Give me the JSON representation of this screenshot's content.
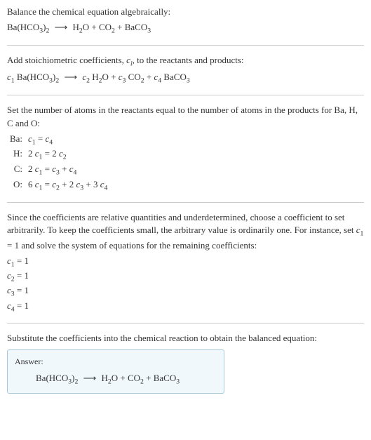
{
  "colors": {
    "text": "#333333",
    "divider": "#cccccc",
    "answer_bg": "#f0f8fc",
    "answer_border": "#a8c8d8",
    "body_bg": "#ffffff"
  },
  "typography": {
    "font_family": "Georgia, Times New Roman, serif",
    "base_fontsize": 13,
    "sub_fontsize_em": 0.75
  },
  "arrow": "⟶",
  "block1": {
    "title": "Balance the chemical equation algebraically:",
    "lhs": "Ba(HCO",
    "lhs_sub1": "3",
    "lhs_tail": ")",
    "lhs_sub2": "2",
    "rhs1": "H",
    "rhs1_sub": "2",
    "rhs1_tail": "O + CO",
    "rhs2_sub": "2",
    "rhs2_tail": " + BaCO",
    "rhs3_sub": "3"
  },
  "block2": {
    "title_pre": "Add stoichiometric coefficients, ",
    "title_ci": "c",
    "title_ci_sub": "i",
    "title_post": ", to the reactants and products:",
    "c1": "c",
    "c1_sub": "1",
    "c1_sp": " Ba(HCO",
    "c1_sub2": "3",
    "c1_tail": ")",
    "c1_sub3": "2",
    "c2": "c",
    "c2_sub": "2",
    "c2_sp": " H",
    "c2_sub2": "2",
    "c2_tail": "O + ",
    "c3": "c",
    "c3_sub": "3",
    "c3_sp": " CO",
    "c3_sub2": "2",
    "c3_tail": " + ",
    "c4": "c",
    "c4_sub": "4",
    "c4_sp": " BaCO",
    "c4_sub2": "3"
  },
  "block3": {
    "title": "Set the number of atoms in the reactants equal to the number of atoms in the products for Ba, H, C and O:",
    "rows": [
      {
        "label": "Ba:",
        "pre1": "c",
        "sub1": "1",
        "mid": " = ",
        "pre2": "c",
        "sub2": "4",
        "tail": ""
      },
      {
        "label": "H:",
        "pre1": "2 c",
        "sub1": "1",
        "mid": " = 2 ",
        "pre2": "c",
        "sub2": "2",
        "tail": ""
      },
      {
        "label": "C:",
        "pre1": "2 c",
        "sub1": "1",
        "mid": " = ",
        "pre2": "c",
        "sub2": "3",
        "tail_pre": " + ",
        "pre3": "c",
        "sub3": "4"
      },
      {
        "label": "O:",
        "pre1": "6 c",
        "sub1": "1",
        "mid": " = ",
        "pre2": "c",
        "sub2": "2",
        "tail_pre": " + 2 ",
        "pre3": "c",
        "sub3": "3",
        "tail_pre2": " + 3 ",
        "pre4": "c",
        "sub4": "4"
      }
    ]
  },
  "block4": {
    "title_pre": "Since the coefficients are relative quantities and underdetermined, choose a coefficient to set arbitrarily. To keep the coefficients small, the arbitrary value is ordinarily one. For instance, set ",
    "title_c": "c",
    "title_c_sub": "1",
    "title_post": " = 1 and solve the system of equations for the remaining coefficients:",
    "coefs": [
      {
        "c": "c",
        "sub": "1",
        "val": " = 1"
      },
      {
        "c": "c",
        "sub": "2",
        "val": " = 1"
      },
      {
        "c": "c",
        "sub": "3",
        "val": " = 1"
      },
      {
        "c": "c",
        "sub": "4",
        "val": " = 1"
      }
    ]
  },
  "block5": {
    "title": "Substitute the coefficients into the chemical reaction to obtain the balanced equation:",
    "answer_label": "Answer:",
    "lhs": "Ba(HCO",
    "lhs_sub1": "3",
    "lhs_tail": ")",
    "lhs_sub2": "2",
    "rhs1": "H",
    "rhs1_sub": "2",
    "rhs1_tail": "O + CO",
    "rhs2_sub": "2",
    "rhs2_tail": " + BaCO",
    "rhs3_sub": "3"
  }
}
